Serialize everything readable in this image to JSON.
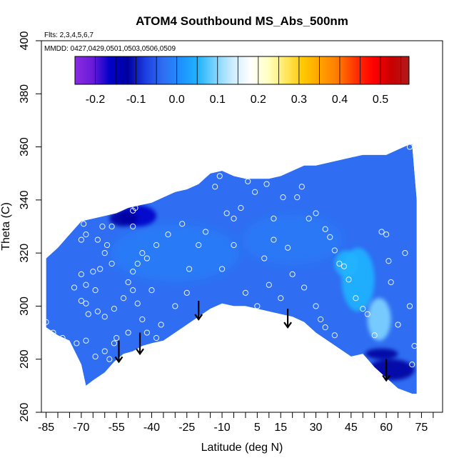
{
  "chart_data": {
    "type": "heatmap",
    "title": "ATOM4 Southbound MS_Abs_500nm",
    "subtitle_flights": "Flts: 2,3,4,5,6,7",
    "subtitle_dates": "MMDD: 0427,0429,0501,0503,0506,0509",
    "xlabel": "Latitude (deg N)",
    "ylabel": "Theta (C)",
    "xlim": [
      -87,
      84
    ],
    "ylim": [
      260,
      400
    ],
    "x_ticks": [
      -85,
      -70,
      -55,
      -40,
      -25,
      -10,
      5,
      15,
      30,
      45,
      60,
      75
    ],
    "x_tick_labels": [
      "-85",
      "-70",
      "-55",
      "-40",
      "-25",
      "-10",
      "5",
      "15",
      "30",
      "45",
      "60",
      "75"
    ],
    "x_minor_ticks": [
      -80,
      -75,
      -65,
      -60,
      -50,
      -45,
      -35,
      -30,
      -20,
      -15,
      -5,
      0,
      10,
      20,
      25,
      35,
      40,
      50,
      55,
      65,
      70,
      80
    ],
    "y_ticks": [
      260,
      280,
      300,
      320,
      340,
      360,
      380,
      400
    ],
    "y_tick_labels": [
      "260",
      "280",
      "300",
      "320",
      "340",
      "360",
      "380",
      "400"
    ],
    "colorbar": {
      "range": [
        -0.25,
        0.57
      ],
      "ticks": [
        -0.2,
        -0.1,
        0.0,
        0.1,
        0.2,
        0.3,
        0.4,
        0.5
      ],
      "tick_labels": [
        "-0.2",
        "-0.1",
        "0.0",
        "0.1",
        "0.2",
        "0.3",
        "0.4",
        "0.5"
      ],
      "colors": [
        "#8a2be2",
        "#6a1bd8",
        "#0000c8",
        "#0000a0",
        "#1b3ee0",
        "#2f6ef2",
        "#1e90ff",
        "#20b4ff",
        "#7fd4ff",
        "#cfeeff",
        "#ffffff",
        "#ffffc0",
        "#ffe860",
        "#ffc800",
        "#ffa000",
        "#ff7800",
        "#ff3000",
        "#ff0000",
        "#c80000",
        "#b01a1a"
      ],
      "boundaries": [
        -0.25,
        -0.2,
        -0.15,
        -0.1,
        -0.05,
        0.0,
        0.05,
        0.1,
        0.15,
        0.2,
        0.25,
        0.3,
        0.35,
        0.4,
        0.45,
        0.5,
        0.55
      ]
    },
    "domain": {
      "top": [
        [
          -85,
          318
        ],
        [
          -80,
          322
        ],
        [
          -75,
          327
        ],
        [
          -70,
          332
        ],
        [
          -65,
          333
        ],
        [
          -60,
          334
        ],
        [
          -55,
          335
        ],
        [
          -50,
          337
        ],
        [
          -45,
          338
        ],
        [
          -40,
          339
        ],
        [
          -35,
          341
        ],
        [
          -30,
          343
        ],
        [
          -25,
          344
        ],
        [
          -20,
          346
        ],
        [
          -15,
          350
        ],
        [
          -10,
          351
        ],
        [
          -5,
          349
        ],
        [
          0,
          348
        ],
        [
          5,
          348
        ],
        [
          10,
          348
        ],
        [
          15,
          349
        ],
        [
          20,
          351
        ],
        [
          25,
          353
        ],
        [
          30,
          353
        ],
        [
          35,
          354
        ],
        [
          40,
          355
        ],
        [
          45,
          356
        ],
        [
          50,
          357
        ],
        [
          55,
          357
        ],
        [
          60,
          357
        ],
        [
          65,
          359
        ],
        [
          70,
          361
        ],
        [
          71,
          361
        ]
      ],
      "bottom": [
        [
          -85,
          292
        ],
        [
          -80,
          289
        ],
        [
          -75,
          287
        ],
        [
          -70,
          278
        ],
        [
          -68,
          270
        ],
        [
          -65,
          272
        ],
        [
          -60,
          275
        ],
        [
          -56,
          279
        ],
        [
          -52,
          282
        ],
        [
          -48,
          283
        ],
        [
          -44,
          285
        ],
        [
          -40,
          286
        ],
        [
          -35,
          287
        ],
        [
          -30,
          290
        ],
        [
          -25,
          293
        ],
        [
          -20,
          296
        ],
        [
          -15,
          299
        ],
        [
          -10,
          301
        ],
        [
          -5,
          300
        ],
        [
          0,
          300
        ],
        [
          5,
          299
        ],
        [
          10,
          298
        ],
        [
          15,
          297
        ],
        [
          20,
          296
        ],
        [
          25,
          294
        ],
        [
          30,
          290
        ],
        [
          35,
          287
        ],
        [
          40,
          284
        ],
        [
          45,
          281
        ],
        [
          50,
          282
        ],
        [
          55,
          277
        ],
        [
          60,
          273
        ],
        [
          65,
          269
        ],
        [
          71,
          267
        ],
        [
          73,
          267
        ]
      ],
      "right_edge": [
        [
          71,
          361
        ],
        [
          73,
          340
        ],
        [
          73,
          267
        ]
      ]
    },
    "features": [
      {
        "kind": "negative",
        "x": -46,
        "y": 334,
        "rx": 8,
        "ry": 4,
        "value": -0.12
      },
      {
        "kind": "negative",
        "x": -52,
        "y": 333,
        "rx": 6,
        "ry": 3,
        "value": -0.08
      },
      {
        "kind": "negative",
        "x": 62,
        "y": 276,
        "rx": 10,
        "ry": 4,
        "value": -0.1
      },
      {
        "kind": "negative",
        "x": 58,
        "y": 282,
        "rx": 7,
        "ry": 2,
        "value": -0.07
      },
      {
        "kind": "positive",
        "x": 48,
        "y": 310,
        "rx": 7,
        "ry": 12,
        "value": 0.13
      },
      {
        "kind": "positive",
        "x": 57,
        "y": 295,
        "rx": 5,
        "ry": 8,
        "value": 0.16
      },
      {
        "kind": "positive",
        "x": 43,
        "y": 316,
        "rx": 5,
        "ry": 5,
        "value": 0.1
      }
    ],
    "points": [
      [
        -69,
        331
      ],
      [
        -68,
        327
      ],
      [
        -63,
        325
      ],
      [
        -70,
        325
      ],
      [
        -61,
        330
      ],
      [
        -57,
        330
      ],
      [
        -60,
        320
      ],
      [
        -57,
        316
      ],
      [
        -59,
        323
      ],
      [
        -62,
        314
      ],
      [
        -65,
        313
      ],
      [
        -70,
        312
      ],
      [
        -68,
        308
      ],
      [
        -64,
        306
      ],
      [
        -73,
        307
      ],
      [
        -70,
        302
      ],
      [
        -68,
        301
      ],
      [
        -67,
        297
      ],
      [
        -63,
        298
      ],
      [
        -60,
        296
      ],
      [
        -56,
        299
      ],
      [
        -52,
        303
      ],
      [
        -50,
        309
      ],
      [
        -48,
        313
      ],
      [
        -46,
        316
      ],
      [
        -44,
        320
      ],
      [
        -42,
        318
      ],
      [
        -48,
        306
      ],
      [
        -46,
        301
      ],
      [
        -44,
        295
      ],
      [
        -50,
        290
      ],
      [
        -56,
        286
      ],
      [
        -60,
        283
      ],
      [
        -64,
        281
      ],
      [
        -68,
        287
      ],
      [
        -72,
        286
      ],
      [
        -78,
        288
      ],
      [
        -82,
        290
      ],
      [
        -85,
        294
      ],
      [
        -48,
        330
      ],
      [
        -47,
        337
      ],
      [
        -48,
        336
      ],
      [
        -38,
        323
      ],
      [
        -33,
        327
      ],
      [
        -27,
        331
      ],
      [
        -24,
        314
      ],
      [
        -20,
        323
      ],
      [
        -17,
        328
      ],
      [
        -13,
        345
      ],
      [
        -11,
        349
      ],
      [
        -8,
        335
      ],
      [
        -5,
        333
      ],
      [
        -2,
        337
      ],
      [
        1,
        347
      ],
      [
        4,
        343
      ],
      [
        9,
        346
      ],
      [
        12,
        333
      ],
      [
        16,
        341
      ],
      [
        22,
        341
      ],
      [
        24,
        345
      ],
      [
        27,
        333
      ],
      [
        30,
        335
      ],
      [
        34,
        329
      ],
      [
        36,
        326
      ],
      [
        38,
        321
      ],
      [
        40,
        316
      ],
      [
        42,
        315
      ],
      [
        44,
        310
      ],
      [
        47,
        303
      ],
      [
        50,
        299
      ],
      [
        52,
        297
      ],
      [
        55,
        289
      ],
      [
        58,
        328
      ],
      [
        60,
        327
      ],
      [
        61,
        317
      ],
      [
        62,
        309
      ],
      [
        65,
        293
      ],
      [
        68,
        320
      ],
      [
        70,
        300
      ],
      [
        71,
        278
      ],
      [
        72,
        285
      ],
      [
        70,
        360
      ],
      [
        -5,
        323
      ],
      [
        -10,
        314
      ],
      [
        0,
        305
      ],
      [
        5,
        300
      ],
      [
        10,
        308
      ],
      [
        15,
        303
      ],
      [
        20,
        312
      ],
      [
        25,
        307
      ],
      [
        30,
        300
      ],
      [
        32,
        295
      ],
      [
        34,
        292
      ],
      [
        38,
        289
      ],
      [
        -30,
        300
      ],
      [
        -36,
        293
      ],
      [
        -38,
        288
      ],
      [
        -42,
        290
      ],
      [
        -55,
        288
      ],
      [
        -58,
        280
      ],
      [
        -25,
        305
      ],
      [
        -40,
        306
      ],
      [
        8,
        318
      ],
      [
        12,
        325
      ],
      [
        18,
        322
      ]
    ],
    "arrows": [
      {
        "x": -54,
        "y_top": 287,
        "y_bottom": 279
      },
      {
        "x": -45,
        "y_top": 290,
        "y_bottom": 282
      },
      {
        "x": -20,
        "y_top": 302,
        "y_bottom": 295
      },
      {
        "x": 18,
        "y_top": 299,
        "y_bottom": 292
      },
      {
        "x": 60,
        "y_top": 280,
        "y_bottom": 272
      }
    ]
  }
}
